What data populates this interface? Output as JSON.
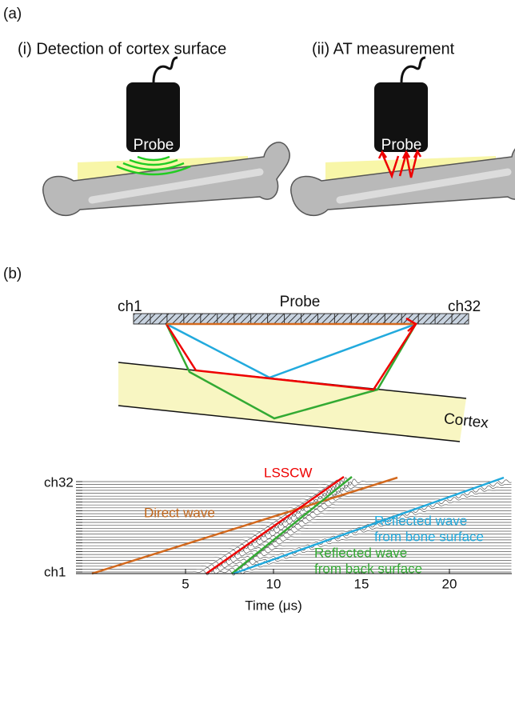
{
  "panel_a": {
    "label": "(a)",
    "left_title": "(i) Detection of cortex surface",
    "right_title": "(ii) AT measurement",
    "probe_label": "Probe"
  },
  "panel_b": {
    "label": "(b)",
    "probe_label": "Probe",
    "first_channel": "ch1",
    "last_channel": "ch32",
    "cortex_label": "Cortex"
  },
  "waveform_plot": {
    "xticks": [
      5,
      10,
      15,
      20
    ],
    "xlabel": "Time (μs)",
    "channel_top": "ch32",
    "channel_bottom": "ch1",
    "annotations": {
      "lsscw": "LSSCW",
      "direct": "Direct wave",
      "bone_1": "Reflected wave",
      "bone_2": "from bone surface",
      "back_1": "Reflected wave",
      "back_2": "from back surface"
    }
  }
}
